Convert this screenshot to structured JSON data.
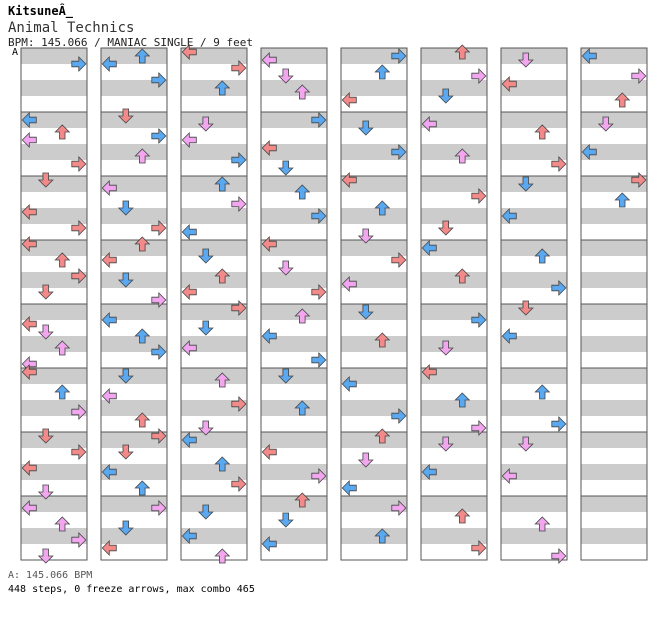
{
  "header": {
    "user": "KitsuneÂ_",
    "song": "Animal Technics",
    "info": "BPM: 145.066 / MANIAC SINGLE / 9 feet"
  },
  "bpm_marker": "A",
  "footer": {
    "bpm_line": "A: 145.066 BPM",
    "stats": "448 steps, 0 freeze arrows, max combo 465"
  },
  "colors": {
    "stripe": "#cccccc",
    "background": "#ffffff",
    "border": "#555555",
    "arrow_red": "#f28a8a",
    "arrow_pink": "#f2a6ef",
    "arrow_blue": "#5aa8ef"
  },
  "chart_data": {
    "type": "step-chart",
    "columns": 8,
    "measures_per_column": 8,
    "lanes": [
      "left",
      "down",
      "up",
      "right"
    ],
    "arrows": [
      [
        [
          0,
          3,
          "right"
        ],
        [
          1,
          1,
          "left"
        ],
        [
          1,
          4,
          "up"
        ],
        [
          1,
          6,
          "left"
        ],
        [
          1,
          12,
          "right"
        ],
        [
          2,
          0,
          "down"
        ],
        [
          2,
          8,
          "left"
        ],
        [
          2,
          12,
          "right"
        ],
        [
          3,
          0,
          "left"
        ],
        [
          3,
          4,
          "up"
        ],
        [
          3,
          8,
          "right"
        ],
        [
          3,
          12,
          "down"
        ],
        [
          4,
          4,
          "left"
        ],
        [
          4,
          6,
          "down"
        ],
        [
          4,
          10,
          "up"
        ],
        [
          4,
          14,
          "left"
        ],
        [
          5,
          0,
          "left"
        ],
        [
          5,
          5,
          "up"
        ],
        [
          5,
          10,
          "right"
        ],
        [
          6,
          0,
          "down"
        ],
        [
          6,
          4,
          "right"
        ],
        [
          6,
          8,
          "left"
        ],
        [
          6,
          14,
          "down"
        ],
        [
          7,
          2,
          "left"
        ],
        [
          7,
          6,
          "up"
        ],
        [
          7,
          10,
          "right"
        ],
        [
          7,
          14,
          "down"
        ]
      ],
      [
        [
          0,
          1,
          "up"
        ],
        [
          0,
          3,
          "left"
        ],
        [
          0,
          7,
          "right"
        ],
        [
          1,
          0,
          "down"
        ],
        [
          1,
          5,
          "right"
        ],
        [
          1,
          10,
          "up"
        ],
        [
          2,
          2,
          "left"
        ],
        [
          2,
          7,
          "down"
        ],
        [
          2,
          12,
          "right"
        ],
        [
          3,
          0,
          "up"
        ],
        [
          3,
          4,
          "left"
        ],
        [
          3,
          9,
          "down"
        ],
        [
          3,
          14,
          "right"
        ],
        [
          4,
          3,
          "left"
        ],
        [
          4,
          7,
          "up"
        ],
        [
          4,
          11,
          "right"
        ],
        [
          5,
          1,
          "down"
        ],
        [
          5,
          6,
          "left"
        ],
        [
          5,
          12,
          "up"
        ],
        [
          6,
          0,
          "right"
        ],
        [
          6,
          4,
          "down"
        ],
        [
          6,
          9,
          "left"
        ],
        [
          6,
          13,
          "up"
        ],
        [
          7,
          2,
          "right"
        ],
        [
          7,
          7,
          "down"
        ],
        [
          7,
          12,
          "left"
        ]
      ],
      [
        [
          0,
          0,
          "left"
        ],
        [
          0,
          4,
          "right"
        ],
        [
          0,
          9,
          "up"
        ],
        [
          1,
          2,
          "down"
        ],
        [
          1,
          6,
          "left"
        ],
        [
          1,
          11,
          "right"
        ],
        [
          2,
          1,
          "up"
        ],
        [
          2,
          6,
          "right"
        ],
        [
          2,
          13,
          "left"
        ],
        [
          3,
          3,
          "down"
        ],
        [
          3,
          8,
          "up"
        ],
        [
          3,
          12,
          "left"
        ],
        [
          4,
          0,
          "right"
        ],
        [
          4,
          5,
          "down"
        ],
        [
          4,
          10,
          "left"
        ],
        [
          5,
          2,
          "up"
        ],
        [
          5,
          8,
          "right"
        ],
        [
          5,
          14,
          "down"
        ],
        [
          6,
          1,
          "left"
        ],
        [
          6,
          7,
          "up"
        ],
        [
          6,
          12,
          "right"
        ],
        [
          7,
          3,
          "down"
        ],
        [
          7,
          9,
          "left"
        ],
        [
          7,
          14,
          "up"
        ]
      ],
      [
        [
          0,
          2,
          "left"
        ],
        [
          0,
          6,
          "down"
        ],
        [
          0,
          10,
          "up"
        ],
        [
          1,
          1,
          "right"
        ],
        [
          1,
          8,
          "left"
        ],
        [
          1,
          13,
          "down"
        ],
        [
          2,
          3,
          "up"
        ],
        [
          2,
          9,
          "right"
        ],
        [
          3,
          0,
          "left"
        ],
        [
          3,
          6,
          "down"
        ],
        [
          3,
          12,
          "right"
        ],
        [
          4,
          2,
          "up"
        ],
        [
          4,
          7,
          "left"
        ],
        [
          4,
          13,
          "right"
        ],
        [
          5,
          1,
          "down"
        ],
        [
          5,
          9,
          "up"
        ],
        [
          6,
          4,
          "left"
        ],
        [
          6,
          10,
          "right"
        ],
        [
          7,
          0,
          "up"
        ],
        [
          7,
          5,
          "down"
        ],
        [
          7,
          11,
          "left"
        ]
      ],
      [
        [
          0,
          1,
          "right"
        ],
        [
          0,
          5,
          "up"
        ],
        [
          0,
          12,
          "left"
        ],
        [
          1,
          3,
          "down"
        ],
        [
          1,
          9,
          "right"
        ],
        [
          2,
          0,
          "left"
        ],
        [
          2,
          7,
          "up"
        ],
        [
          2,
          14,
          "down"
        ],
        [
          3,
          4,
          "right"
        ],
        [
          3,
          10,
          "left"
        ],
        [
          4,
          1,
          "down"
        ],
        [
          4,
          8,
          "up"
        ],
        [
          5,
          3,
          "left"
        ],
        [
          5,
          11,
          "right"
        ],
        [
          6,
          0,
          "up"
        ],
        [
          6,
          6,
          "down"
        ],
        [
          6,
          13,
          "left"
        ],
        [
          7,
          2,
          "right"
        ],
        [
          7,
          9,
          "up"
        ]
      ],
      [
        [
          0,
          0,
          "up"
        ],
        [
          0,
          6,
          "right"
        ],
        [
          0,
          11,
          "down"
        ],
        [
          1,
          2,
          "left"
        ],
        [
          1,
          10,
          "up"
        ],
        [
          2,
          4,
          "right"
        ],
        [
          2,
          12,
          "down"
        ],
        [
          3,
          1,
          "left"
        ],
        [
          3,
          8,
          "up"
        ],
        [
          4,
          3,
          "right"
        ],
        [
          4,
          10,
          "down"
        ],
        [
          5,
          0,
          "left"
        ],
        [
          5,
          7,
          "up"
        ],
        [
          5,
          14,
          "right"
        ],
        [
          6,
          2,
          "down"
        ],
        [
          6,
          9,
          "left"
        ],
        [
          7,
          4,
          "up"
        ],
        [
          7,
          12,
          "right"
        ]
      ],
      [
        [
          0,
          2,
          "down"
        ],
        [
          0,
          8,
          "left"
        ],
        [
          1,
          4,
          "up"
        ],
        [
          1,
          12,
          "right"
        ],
        [
          2,
          1,
          "down"
        ],
        [
          2,
          9,
          "left"
        ],
        [
          3,
          3,
          "up"
        ],
        [
          3,
          11,
          "right"
        ],
        [
          4,
          0,
          "down"
        ],
        [
          4,
          7,
          "left"
        ],
        [
          5,
          5,
          "up"
        ],
        [
          5,
          13,
          "right"
        ],
        [
          6,
          2,
          "down"
        ],
        [
          6,
          10,
          "left"
        ],
        [
          7,
          6,
          "up"
        ],
        [
          7,
          14,
          "right"
        ]
      ],
      [
        [
          0,
          1,
          "left"
        ],
        [
          0,
          6,
          "right"
        ],
        [
          0,
          12,
          "up"
        ],
        [
          1,
          2,
          "down"
        ],
        [
          1,
          9,
          "left"
        ],
        [
          2,
          0,
          "right"
        ],
        [
          2,
          5,
          "up"
        ]
      ]
    ]
  }
}
